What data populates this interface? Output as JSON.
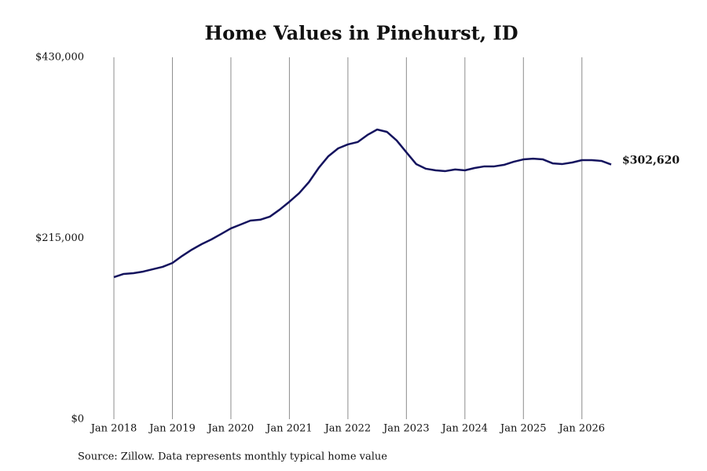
{
  "chart_data": {
    "type": "line",
    "title": "Home Values in Pinehurst, ID",
    "source": "Source: Zillow. Data represents monthly typical home value",
    "x": [
      "2018-01",
      "2018-03",
      "2018-05",
      "2018-07",
      "2018-09",
      "2018-11",
      "2019-01",
      "2019-03",
      "2019-05",
      "2019-07",
      "2019-09",
      "2019-11",
      "2020-01",
      "2020-03",
      "2020-05",
      "2020-07",
      "2020-09",
      "2020-11",
      "2021-01",
      "2021-03",
      "2021-05",
      "2021-07",
      "2021-09",
      "2021-11",
      "2022-01",
      "2022-03",
      "2022-05",
      "2022-07",
      "2022-09",
      "2022-11",
      "2023-01",
      "2023-03",
      "2023-05",
      "2023-07",
      "2023-09",
      "2023-11",
      "2024-01",
      "2024-03",
      "2024-05",
      "2024-07",
      "2024-09",
      "2024-11",
      "2025-01",
      "2025-03",
      "2025-05",
      "2025-07",
      "2025-09",
      "2025-11",
      "2026-01",
      "2026-03",
      "2026-05",
      "2026-07"
    ],
    "series": [
      {
        "name": "Home value",
        "color": "#14135e",
        "values": [
          168800,
          172600,
          173500,
          175400,
          178200,
          181000,
          185600,
          194000,
          201500,
          208000,
          213600,
          220100,
          226700,
          231300,
          236000,
          237000,
          240700,
          249000,
          258400,
          268600,
          281700,
          298500,
          312500,
          321800,
          326500,
          329300,
          337700,
          344200,
          341400,
          331200,
          317100,
          303200,
          297600,
          295700,
          294800,
          296700,
          295700,
          298500,
          300400,
          300400,
          302200,
          305900,
          308700,
          309600,
          308700,
          304000,
          303200,
          305000,
          307800,
          307800,
          306900,
          302620
        ],
        "value_labels": [
          null,
          null,
          null,
          null,
          null,
          null,
          null,
          null,
          null,
          null,
          null,
          null,
          null,
          null,
          null,
          null,
          null,
          null,
          null,
          null,
          null,
          null,
          null,
          null,
          null,
          null,
          null,
          null,
          null,
          null,
          null,
          null,
          null,
          null,
          null,
          null,
          null,
          null,
          null,
          null,
          null,
          null,
          null,
          null,
          null,
          null,
          null,
          null,
          null,
          null,
          null,
          "$302,620"
        ]
      }
    ],
    "xlim": [
      "2018-01",
      "2026-07"
    ],
    "xticks": [
      {
        "value": "2018-01",
        "label": "Jan 2018"
      },
      {
        "value": "2019-01",
        "label": "Jan 2019"
      },
      {
        "value": "2020-01",
        "label": "Jan 2020"
      },
      {
        "value": "2021-01",
        "label": "Jan 2021"
      },
      {
        "value": "2022-01",
        "label": "Jan 2022"
      },
      {
        "value": "2023-01",
        "label": "Jan 2023"
      },
      {
        "value": "2024-01",
        "label": "Jan 2024"
      },
      {
        "value": "2025-01",
        "label": "Jan 2025"
      },
      {
        "value": "2026-01",
        "label": "Jan 2026"
      }
    ],
    "ylim": [
      0,
      430000
    ],
    "yticks": [
      {
        "value": 0,
        "label": "$0"
      },
      {
        "value": 215000,
        "label": "$215,000"
      },
      {
        "value": 430000,
        "label": "$430,000"
      }
    ],
    "grid": "x"
  }
}
